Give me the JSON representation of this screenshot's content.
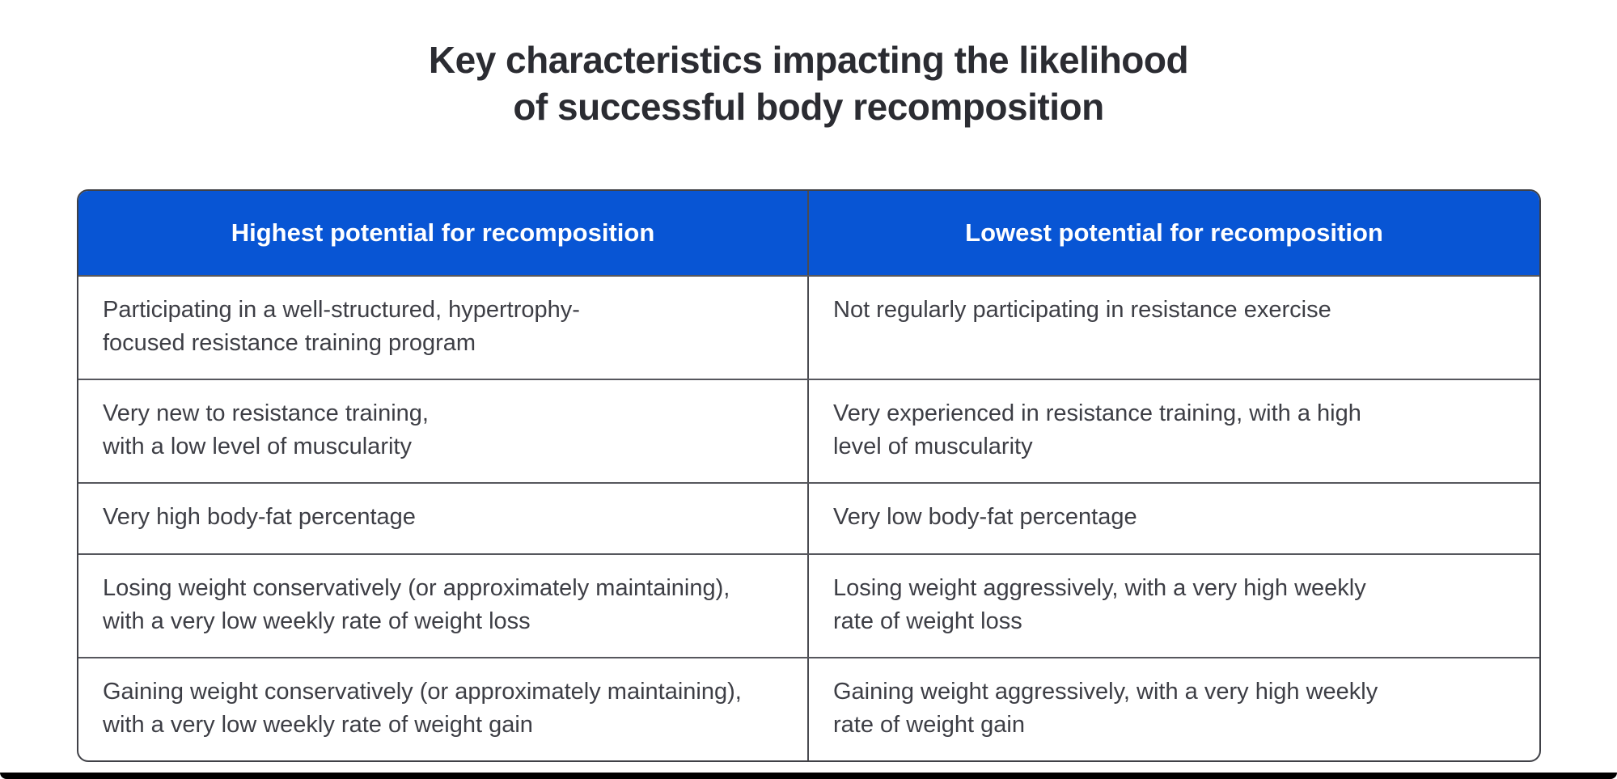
{
  "title": {
    "line1": "Key characteristics impacting the likelihood",
    "line2": "of successful body recomposition"
  },
  "table": {
    "columns": [
      {
        "header": "Highest potential for recomposition"
      },
      {
        "header": "Lowest potential for recomposition"
      }
    ],
    "rows": [
      {
        "left": "Participating in a well-structured, hypertrophy-\nfocused resistance training program",
        "right": "Not regularly participating in resistance exercise"
      },
      {
        "left": "Very new to resistance training,\nwith a low level of muscularity",
        "right": "Very experienced in resistance training, with a high\nlevel of muscularity"
      },
      {
        "left": "Very high body-fat percentage",
        "right": "Very low body-fat percentage"
      },
      {
        "left": "Losing weight conservatively (or approximately maintaining),\nwith a very low weekly rate of weight loss",
        "right": "Losing weight aggressively, with a very high weekly\nrate of weight loss"
      },
      {
        "left": "Gaining weight conservatively (or approximately maintaining),\nwith a very low weekly rate of weight gain",
        "right": "Gaining weight aggressively, with a very high weekly\nrate of weight gain"
      }
    ]
  },
  "colors": {
    "header_bg": "#0855d4",
    "header_text": "#ffffff",
    "title_text": "#2b2c32",
    "body_text": "#3d3e45",
    "border": "#4a4b51",
    "bottom_bar": "#000000"
  }
}
